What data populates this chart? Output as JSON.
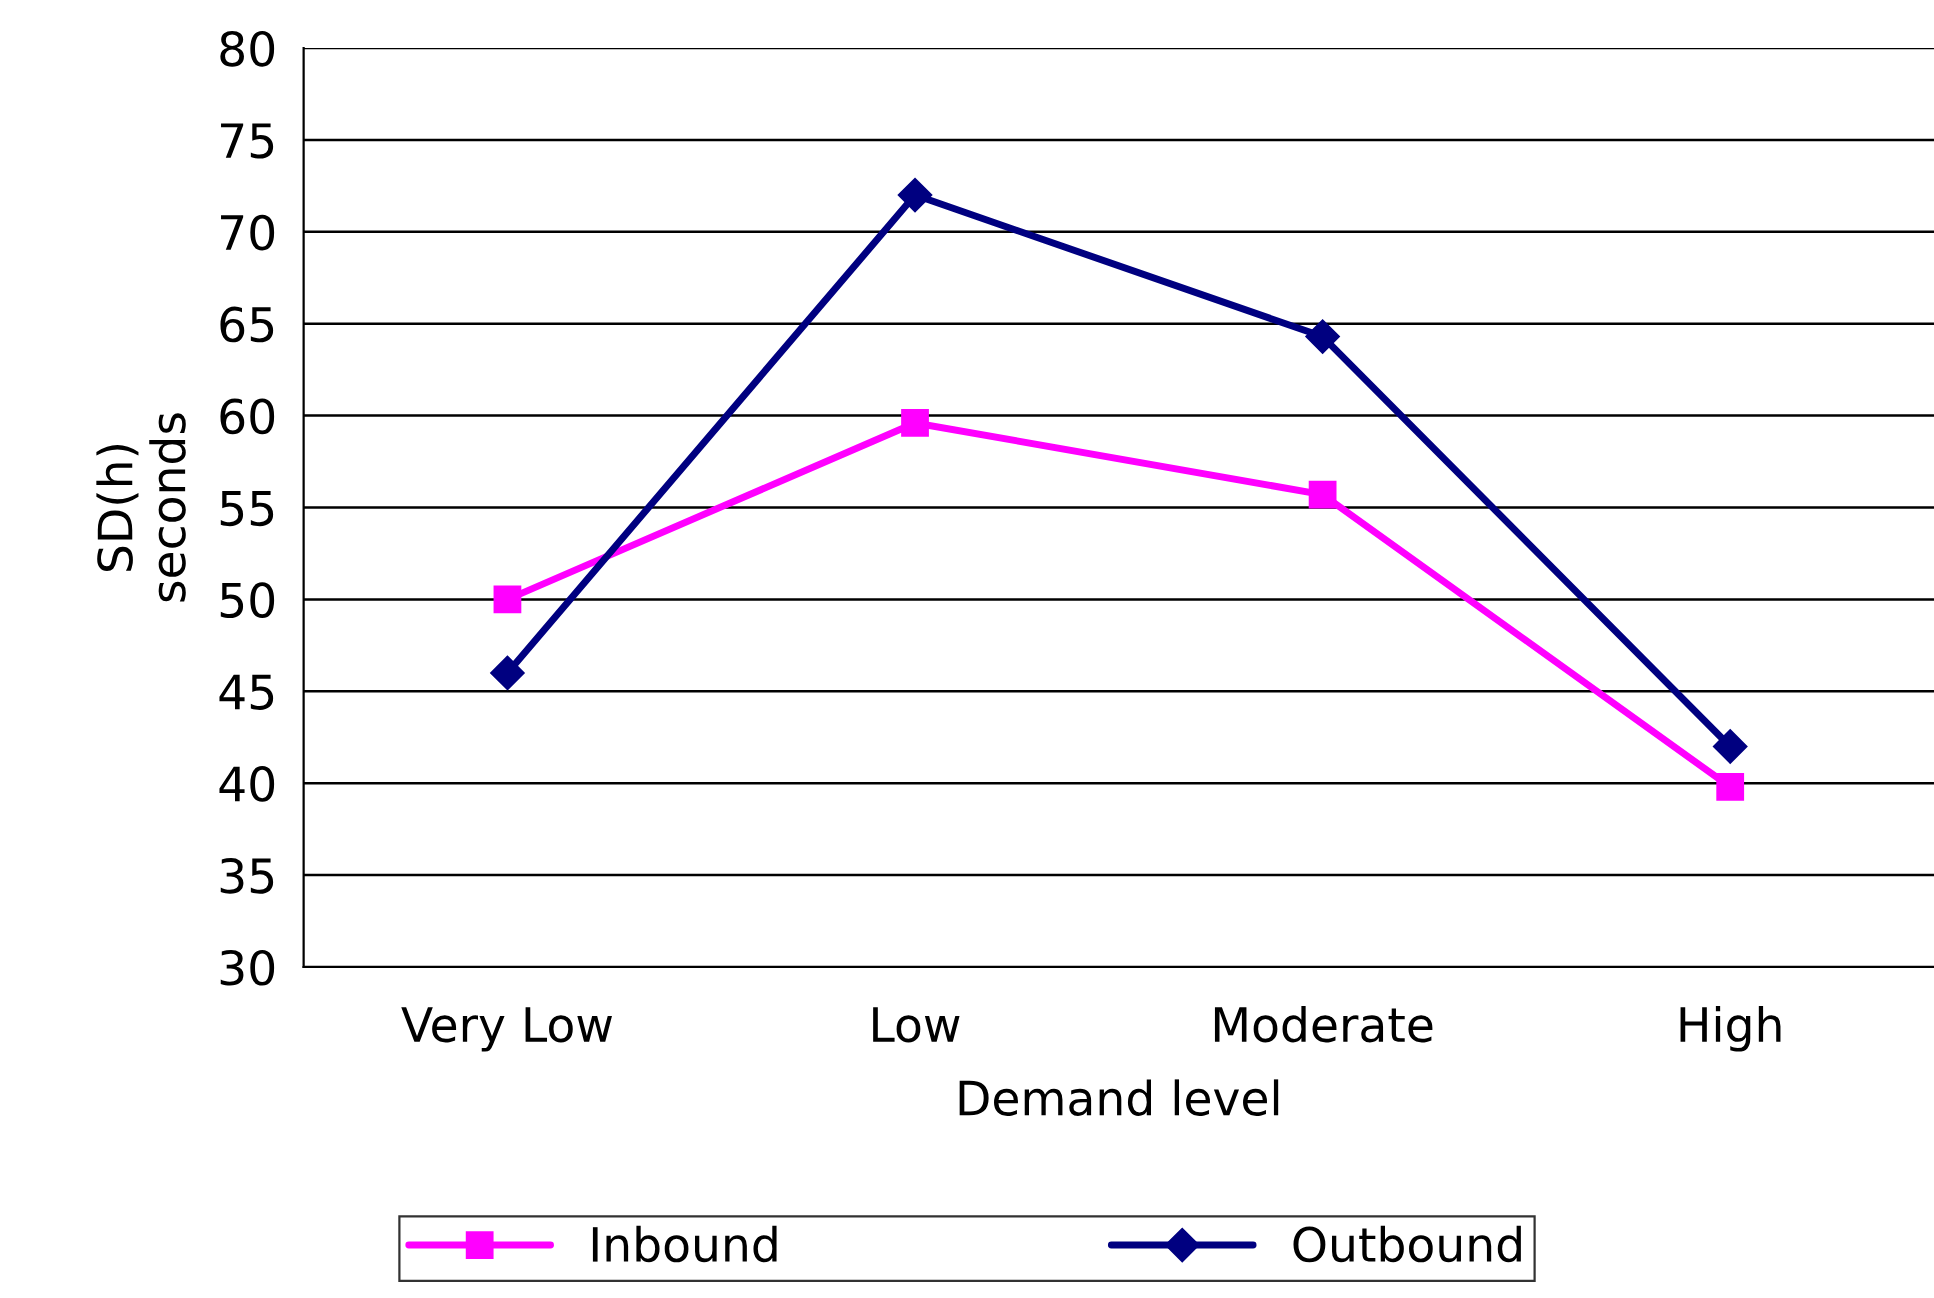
{
  "chart_data": {
    "type": "line",
    "xlabel": "Demand level",
    "ylabel": "SD(h)\nseconds",
    "categories": [
      "Very Low",
      "Low",
      "Moderate",
      "High"
    ],
    "series": [
      {
        "name": "Inbound",
        "color": "#ff00ff",
        "marker": "square",
        "values": [
          50.0,
          59.6,
          55.7,
          39.8
        ]
      },
      {
        "name": "Outbound",
        "color": "#000080",
        "marker": "diamond",
        "values": [
          46.0,
          72.0,
          64.3,
          42.0
        ]
      }
    ],
    "ylim": [
      30,
      80
    ],
    "yticks": [
      30,
      35,
      40,
      45,
      50,
      55,
      60,
      65,
      70,
      75,
      80
    ],
    "grid": "y",
    "legend": "bottom"
  }
}
